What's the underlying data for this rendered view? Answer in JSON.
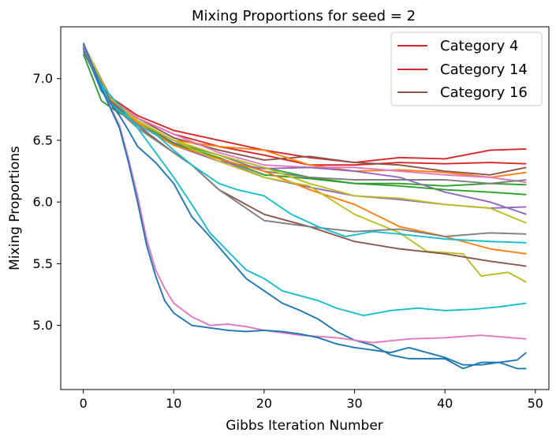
{
  "chart_data": {
    "type": "line",
    "title": "Mixing Proportions for seed = 2",
    "xlabel": "Gibbs Iteration Number",
    "ylabel": "Mixing Proportions",
    "xlim": [
      -2.5,
      51.5
    ],
    "ylim": [
      4.48,
      7.42
    ],
    "xticks": [
      0,
      10,
      20,
      30,
      40,
      50
    ],
    "yticks": [
      5.0,
      5.5,
      6.0,
      6.5,
      7.0
    ],
    "ytick_labels": [
      "5.0",
      "5.5",
      "6.0",
      "6.5",
      "7.0"
    ],
    "grid": false,
    "legend_position": "top-right",
    "legend": [
      {
        "name": "Category 4",
        "color": "#d62728"
      },
      {
        "name": "Category 14",
        "color": "#d62728"
      },
      {
        "name": "Category 16",
        "color": "#8c564b"
      }
    ],
    "series": [
      {
        "color": "#d62728",
        "keypoints": [
          [
            0,
            7.28
          ],
          [
            3,
            6.85
          ],
          [
            6,
            6.7
          ],
          [
            10,
            6.58
          ],
          [
            15,
            6.5
          ],
          [
            20,
            6.42
          ],
          [
            25,
            6.36
          ],
          [
            30,
            6.32
          ],
          [
            35,
            6.36
          ],
          [
            40,
            6.35
          ],
          [
            45,
            6.42
          ],
          [
            49,
            6.43
          ]
        ]
      },
      {
        "color": "#d62728",
        "keypoints": [
          [
            0,
            7.27
          ],
          [
            3,
            6.84
          ],
          [
            6,
            6.68
          ],
          [
            10,
            6.55
          ],
          [
            15,
            6.45
          ],
          [
            20,
            6.38
          ],
          [
            25,
            6.3
          ],
          [
            30,
            6.3
          ],
          [
            35,
            6.32
          ],
          [
            40,
            6.31
          ],
          [
            45,
            6.32
          ],
          [
            49,
            6.31
          ]
        ]
      },
      {
        "color": "#8c564b",
        "keypoints": [
          [
            0,
            7.26
          ],
          [
            3,
            6.82
          ],
          [
            6,
            6.68
          ],
          [
            10,
            6.52
          ],
          [
            15,
            6.42
          ],
          [
            20,
            6.34
          ],
          [
            25,
            6.37
          ],
          [
            30,
            6.32
          ],
          [
            35,
            6.3
          ],
          [
            40,
            6.25
          ],
          [
            45,
            6.22
          ],
          [
            49,
            6.28
          ]
        ]
      },
      {
        "color": "#ff7f0e",
        "keypoints": [
          [
            0,
            7.25
          ],
          [
            3,
            6.82
          ],
          [
            6,
            6.66
          ],
          [
            10,
            6.5
          ],
          [
            15,
            6.45
          ],
          [
            20,
            6.42
          ],
          [
            25,
            6.3
          ],
          [
            30,
            6.25
          ],
          [
            35,
            6.26
          ],
          [
            40,
            6.24
          ],
          [
            45,
            6.2
          ],
          [
            49,
            6.24
          ]
        ]
      },
      {
        "color": "#e377c2",
        "keypoints": [
          [
            0,
            7.28
          ],
          [
            3,
            6.84
          ],
          [
            6,
            6.68
          ],
          [
            10,
            6.55
          ],
          [
            15,
            6.4
          ],
          [
            20,
            6.3
          ],
          [
            25,
            6.28
          ],
          [
            30,
            6.28
          ],
          [
            35,
            6.25
          ],
          [
            40,
            6.22
          ],
          [
            45,
            6.2
          ],
          [
            49,
            6.16
          ]
        ]
      },
      {
        "color": "#2ca02c",
        "keypoints": [
          [
            0,
            7.2
          ],
          [
            2,
            6.82
          ],
          [
            4,
            6.72
          ],
          [
            6,
            6.65
          ],
          [
            10,
            6.48
          ],
          [
            15,
            6.38
          ],
          [
            20,
            6.28
          ],
          [
            25,
            6.2
          ],
          [
            30,
            6.15
          ],
          [
            35,
            6.15
          ],
          [
            40,
            6.13
          ],
          [
            45,
            6.15
          ],
          [
            49,
            6.14
          ]
        ]
      },
      {
        "color": "#7f7f7f",
        "keypoints": [
          [
            0,
            7.24
          ],
          [
            3,
            6.8
          ],
          [
            6,
            6.65
          ],
          [
            10,
            6.5
          ],
          [
            15,
            6.38
          ],
          [
            20,
            6.25
          ],
          [
            25,
            6.2
          ],
          [
            30,
            6.18
          ],
          [
            35,
            6.18
          ],
          [
            40,
            6.18
          ],
          [
            45,
            6.15
          ],
          [
            49,
            6.18
          ]
        ]
      },
      {
        "color": "#9467bd",
        "keypoints": [
          [
            0,
            7.25
          ],
          [
            3,
            6.82
          ],
          [
            6,
            6.65
          ],
          [
            10,
            6.48
          ],
          [
            15,
            6.35
          ],
          [
            20,
            6.2
          ],
          [
            25,
            6.12
          ],
          [
            30,
            6.05
          ],
          [
            35,
            6.02
          ],
          [
            40,
            5.98
          ],
          [
            45,
            5.95
          ],
          [
            49,
            5.96
          ]
        ]
      },
      {
        "color": "#9467bd",
        "keypoints": [
          [
            0,
            7.22
          ],
          [
            3,
            6.8
          ],
          [
            6,
            6.63
          ],
          [
            10,
            6.46
          ],
          [
            15,
            6.33
          ],
          [
            20,
            6.27
          ],
          [
            25,
            6.28
          ],
          [
            30,
            6.25
          ],
          [
            35,
            6.2
          ],
          [
            40,
            6.08
          ],
          [
            45,
            6.0
          ],
          [
            49,
            5.9
          ]
        ]
      },
      {
        "color": "#2ca02c",
        "keypoints": [
          [
            0,
            7.22
          ],
          [
            3,
            6.82
          ],
          [
            6,
            6.65
          ],
          [
            10,
            6.47
          ],
          [
            15,
            6.36
          ],
          [
            20,
            6.22
          ],
          [
            25,
            6.19
          ],
          [
            30,
            6.15
          ],
          [
            35,
            6.13
          ],
          [
            40,
            6.1
          ],
          [
            45,
            6.08
          ],
          [
            49,
            6.06
          ]
        ]
      },
      {
        "color": "#bcbd22",
        "keypoints": [
          [
            0,
            7.26
          ],
          [
            3,
            6.82
          ],
          [
            6,
            6.65
          ],
          [
            10,
            6.5
          ],
          [
            15,
            6.38
          ],
          [
            20,
            6.28
          ],
          [
            25,
            6.15
          ],
          [
            30,
            6.05
          ],
          [
            35,
            6.03
          ],
          [
            40,
            5.98
          ],
          [
            45,
            5.95
          ],
          [
            49,
            5.83
          ]
        ]
      },
      {
        "color": "#ff7f0e",
        "keypoints": [
          [
            0,
            7.24
          ],
          [
            3,
            6.82
          ],
          [
            6,
            6.64
          ],
          [
            10,
            6.46
          ],
          [
            15,
            6.35
          ],
          [
            20,
            6.25
          ],
          [
            25,
            6.1
          ],
          [
            30,
            5.98
          ],
          [
            35,
            5.8
          ],
          [
            40,
            5.72
          ],
          [
            45,
            5.62
          ],
          [
            49,
            5.58
          ]
        ]
      },
      {
        "color": "#bcbd22",
        "keypoints": [
          [
            0,
            7.28
          ],
          [
            3,
            6.84
          ],
          [
            6,
            6.66
          ],
          [
            10,
            6.5
          ],
          [
            15,
            6.33
          ],
          [
            20,
            6.2
          ],
          [
            25,
            6.13
          ],
          [
            30,
            5.9
          ],
          [
            35,
            5.75
          ],
          [
            38,
            5.6
          ],
          [
            42,
            5.58
          ],
          [
            44,
            5.4
          ],
          [
            47,
            5.43
          ],
          [
            49,
            5.35
          ]
        ]
      },
      {
        "color": "#8c564b",
        "keypoints": [
          [
            0,
            7.25
          ],
          [
            3,
            6.82
          ],
          [
            6,
            6.62
          ],
          [
            10,
            6.4
          ],
          [
            12,
            6.3
          ],
          [
            15,
            6.1
          ],
          [
            20,
            5.9
          ],
          [
            25,
            5.8
          ],
          [
            30,
            5.68
          ],
          [
            35,
            5.62
          ],
          [
            40,
            5.58
          ],
          [
            45,
            5.52
          ],
          [
            49,
            5.48
          ]
        ]
      },
      {
        "color": "#7f7f7f",
        "keypoints": [
          [
            0,
            7.22
          ],
          [
            3,
            6.8
          ],
          [
            6,
            6.6
          ],
          [
            10,
            6.4
          ],
          [
            12,
            6.3
          ],
          [
            15,
            6.1
          ],
          [
            20,
            5.85
          ],
          [
            25,
            5.8
          ],
          [
            30,
            5.76
          ],
          [
            35,
            5.78
          ],
          [
            40,
            5.72
          ],
          [
            45,
            5.75
          ],
          [
            49,
            5.74
          ]
        ]
      },
      {
        "color": "#17becf",
        "keypoints": [
          [
            0,
            7.25
          ],
          [
            3,
            6.8
          ],
          [
            6,
            6.62
          ],
          [
            8,
            6.55
          ],
          [
            10,
            6.42
          ],
          [
            12,
            6.3
          ],
          [
            15,
            6.15
          ],
          [
            17,
            6.1
          ],
          [
            20,
            6.05
          ],
          [
            23,
            5.9
          ],
          [
            26,
            5.8
          ],
          [
            29,
            5.72
          ],
          [
            32,
            5.76
          ],
          [
            35,
            5.74
          ],
          [
            40,
            5.7
          ],
          [
            45,
            5.68
          ],
          [
            49,
            5.67
          ]
        ]
      },
      {
        "color": "#17becf",
        "keypoints": [
          [
            0,
            7.26
          ],
          [
            2,
            6.95
          ],
          [
            4,
            6.78
          ],
          [
            6,
            6.6
          ],
          [
            8,
            6.4
          ],
          [
            10,
            6.2
          ],
          [
            12,
            5.98
          ],
          [
            14,
            5.75
          ],
          [
            16,
            5.6
          ],
          [
            18,
            5.45
          ],
          [
            20,
            5.38
          ],
          [
            22,
            5.28
          ],
          [
            24,
            5.24
          ],
          [
            26,
            5.2
          ],
          [
            28,
            5.14
          ],
          [
            31,
            5.08
          ],
          [
            34,
            5.12
          ],
          [
            37,
            5.14
          ],
          [
            40,
            5.12
          ],
          [
            43,
            5.13
          ],
          [
            46,
            5.15
          ],
          [
            49,
            5.18
          ]
        ]
      },
      {
        "color": "#1f77b4",
        "keypoints": [
          [
            0,
            7.25
          ],
          [
            2,
            6.9
          ],
          [
            4,
            6.7
          ],
          [
            5,
            6.58
          ],
          [
            6,
            6.45
          ],
          [
            8,
            6.32
          ],
          [
            10,
            6.15
          ],
          [
            12,
            5.88
          ],
          [
            14,
            5.72
          ],
          [
            16,
            5.55
          ],
          [
            18,
            5.38
          ],
          [
            20,
            5.28
          ],
          [
            22,
            5.18
          ],
          [
            24,
            5.12
          ],
          [
            26,
            5.05
          ],
          [
            28,
            4.95
          ],
          [
            30,
            4.88
          ],
          [
            32,
            4.84
          ],
          [
            34,
            4.76
          ],
          [
            36,
            4.73
          ],
          [
            38,
            4.73
          ],
          [
            40,
            4.73
          ],
          [
            42,
            4.65
          ],
          [
            44,
            4.7
          ],
          [
            46,
            4.7
          ],
          [
            48,
            4.72
          ],
          [
            49,
            4.78
          ]
        ]
      },
      {
        "color": "#e377c2",
        "keypoints": [
          [
            0,
            7.27
          ],
          [
            2,
            6.92
          ],
          [
            4,
            6.62
          ],
          [
            5,
            6.35
          ],
          [
            6,
            6.05
          ],
          [
            7,
            5.7
          ],
          [
            8,
            5.45
          ],
          [
            9,
            5.3
          ],
          [
            10,
            5.18
          ],
          [
            12,
            5.07
          ],
          [
            14,
            5.0
          ],
          [
            16,
            5.01
          ],
          [
            18,
            4.99
          ],
          [
            20,
            4.96
          ],
          [
            24,
            4.92
          ],
          [
            28,
            4.9
          ],
          [
            32,
            4.86
          ],
          [
            36,
            4.89
          ],
          [
            40,
            4.9
          ],
          [
            44,
            4.92
          ],
          [
            49,
            4.89
          ]
        ]
      },
      {
        "color": "#1f77b4",
        "keypoints": [
          [
            0,
            7.29
          ],
          [
            2,
            6.92
          ],
          [
            4,
            6.6
          ],
          [
            5,
            6.32
          ],
          [
            6,
            6.0
          ],
          [
            7,
            5.65
          ],
          [
            8,
            5.4
          ],
          [
            9,
            5.2
          ],
          [
            10,
            5.1
          ],
          [
            12,
            5.0
          ],
          [
            14,
            4.98
          ],
          [
            16,
            4.96
          ],
          [
            18,
            4.95
          ],
          [
            20,
            4.96
          ],
          [
            22,
            4.95
          ],
          [
            24,
            4.93
          ],
          [
            26,
            4.9
          ],
          [
            28,
            4.85
          ],
          [
            30,
            4.82
          ],
          [
            32,
            4.8
          ],
          [
            34,
            4.78
          ],
          [
            36,
            4.82
          ],
          [
            38,
            4.78
          ],
          [
            40,
            4.74
          ],
          [
            42,
            4.68
          ],
          [
            44,
            4.68
          ],
          [
            46,
            4.7
          ],
          [
            48,
            4.65
          ],
          [
            49,
            4.65
          ]
        ]
      }
    ]
  }
}
